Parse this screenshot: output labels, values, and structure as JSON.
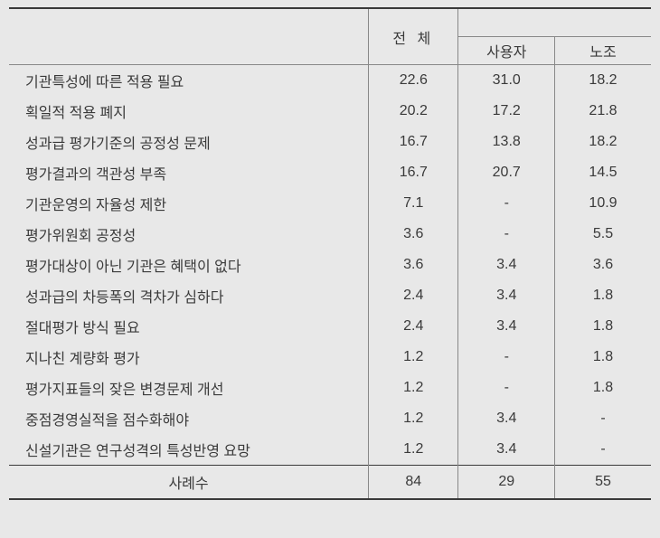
{
  "header": {
    "total": "전 체",
    "user": "사용자",
    "union": "노조"
  },
  "rows": [
    {
      "label": "기관특성에 따른 적용 필요",
      "total": "22.6",
      "user": "31.0",
      "union": "18.2"
    },
    {
      "label": "획일적 적용 폐지",
      "total": "20.2",
      "user": "17.2",
      "union": "21.8"
    },
    {
      "label": "성과급 평가기준의 공정성 문제",
      "total": "16.7",
      "user": "13.8",
      "union": "18.2"
    },
    {
      "label": "평가결과의 객관성 부족",
      "total": "16.7",
      "user": "20.7",
      "union": "14.5"
    },
    {
      "label": "기관운영의 자율성 제한",
      "total": "7.1",
      "user": "-",
      "union": "10.9"
    },
    {
      "label": "평가위원회 공정성",
      "total": "3.6",
      "user": "-",
      "union": "5.5"
    },
    {
      "label": "평가대상이 아닌 기관은 혜택이 없다",
      "total": "3.6",
      "user": "3.4",
      "union": "3.6"
    },
    {
      "label": "성과급의 차등폭의 격차가 심하다",
      "total": "2.4",
      "user": "3.4",
      "union": "1.8"
    },
    {
      "label": "절대평가 방식 필요",
      "total": "2.4",
      "user": "3.4",
      "union": "1.8"
    },
    {
      "label": "지나친 계량화 평가",
      "total": "1.2",
      "user": "-",
      "union": "1.8"
    },
    {
      "label": "평가지표들의 잦은 변경문제 개선",
      "total": "1.2",
      "user": "-",
      "union": "1.8"
    },
    {
      "label": "중점경영실적을 점수화해야",
      "total": "1.2",
      "user": "3.4",
      "union": "-"
    },
    {
      "label": "신설기관은 연구성격의 특성반영 요망",
      "total": "1.2",
      "user": "3.4",
      "union": "-"
    }
  ],
  "footer": {
    "label": "사례수",
    "total": "84",
    "user": "29",
    "union": "55"
  }
}
